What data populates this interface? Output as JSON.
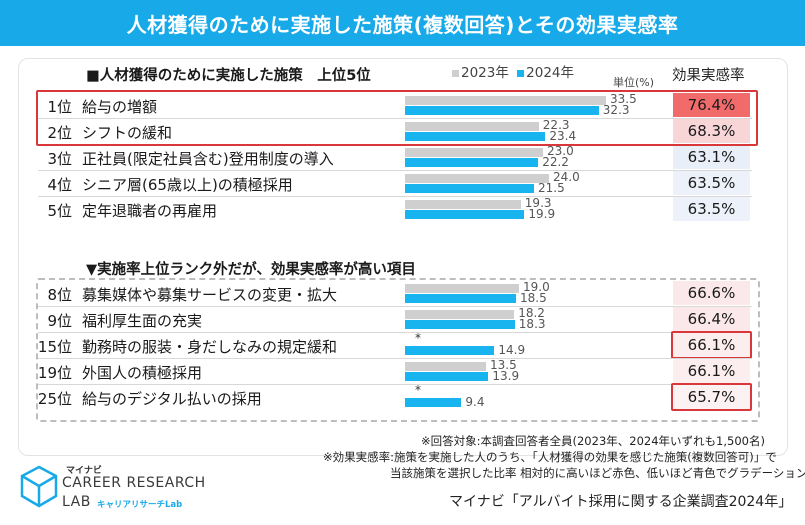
{
  "title": "人材獲得のために実施した施策(複数回答)とその効果実感率",
  "chart_data": {
    "type": "bar",
    "section1_title": "■人材獲得のために実施した施策　上位5位",
    "section2_title": "▼実施率上位ランク外だが、効果実感率が高い項目",
    "legend": [
      {
        "name": "2023年",
        "marker": "■",
        "color": "#cfcfcf"
      },
      {
        "name": "2024年",
        "marker": "■",
        "color": "#18b4f0"
      }
    ],
    "unit": "単位(%)",
    "effect_header": "効果実感率",
    "section1": [
      {
        "rank": "1位",
        "label": "給与の増額",
        "v2023": 33.5,
        "v2023_text": "33.5",
        "v2024": 32.3,
        "v2024_text": "32.3",
        "effect": "76.4%",
        "effect_color": "#f26b6b",
        "highlight": true
      },
      {
        "rank": "2位",
        "label": "シフトの緩和",
        "v2023": 22.3,
        "v2023_text": "22.3",
        "v2024": 23.4,
        "v2024_text": "23.4",
        "effect": "68.3%",
        "effect_color": "#f8d6d8",
        "highlight": true
      },
      {
        "rank": "3位",
        "label": "正社員(限定社員含む)登用制度の導入",
        "v2023": 23.0,
        "v2023_text": "23.0",
        "v2024": 22.2,
        "v2024_text": "22.2",
        "effect": "63.1%",
        "effect_color": "#e9eff9",
        "highlight": false
      },
      {
        "rank": "4位",
        "label": "シニア層(65歳以上)の積極採用",
        "v2023": 24.0,
        "v2023_text": "24.0",
        "v2024": 21.5,
        "v2024_text": "21.5",
        "effect": "63.5%",
        "effect_color": "#edf1f9",
        "highlight": false
      },
      {
        "rank": "5位",
        "label": "定年退職者の再雇用",
        "v2023": 19.3,
        "v2023_text": "19.3",
        "v2024": 19.9,
        "v2024_text": "19.9",
        "effect": "63.5%",
        "effect_color": "#edf1f9",
        "highlight": false
      }
    ],
    "section2": [
      {
        "rank": "8位",
        "label": "募集媒体や募集サービスの変更・拡大",
        "v2023": 19.0,
        "v2023_text": "19.0",
        "v2024": 18.5,
        "v2024_text": "18.5",
        "effect": "66.6%",
        "effect_color": "#fbe8ea",
        "highlight": false
      },
      {
        "rank": "9位",
        "label": "福利厚生面の充実",
        "v2023": 18.2,
        "v2023_text": "18.2",
        "v2024": 18.3,
        "v2024_text": "18.3",
        "effect": "66.4%",
        "effect_color": "#fbe8ea",
        "highlight": false
      },
      {
        "rank": "15位",
        "label": "勤務時の服装・身だしなみの規定緩和",
        "v2023": null,
        "v2023_text": "*",
        "v2024": 14.9,
        "v2024_text": "14.9",
        "effect": "66.1%",
        "effect_color": "#fcedef",
        "highlight": true
      },
      {
        "rank": "19位",
        "label": "外国人の積極採用",
        "v2023": 13.5,
        "v2023_text": "13.5",
        "v2024": 13.9,
        "v2024_text": "13.9",
        "effect": "66.1%",
        "effect_color": "#fcedef",
        "highlight": false
      },
      {
        "rank": "25位",
        "label": "給与のデジタル払いの採用",
        "v2023": null,
        "v2023_text": "*",
        "v2024": 9.4,
        "v2024_text": "9.4",
        "effect": "65.7%",
        "effect_color": "#fdf2f3",
        "highlight": true
      }
    ],
    "x_range": [
      0,
      40
    ]
  },
  "notes": {
    "note1": "※回答対象:本調査回答者全員(2023年、2024年いずれも1,500名)",
    "note2": "※効果実感率:施策を実施した人のうち、「人材獲得の効果を感じた施策(複数回答可)」で",
    "note3": "当該施策を選択した比率  相対的に高いほど赤色、低いほど青色でグラデーション"
  },
  "source": "マイナビ「アルバイト採用に関する企業調査2024年」",
  "logo": {
    "brand": "マイナビ",
    "line1": "CAREER RESEARCH",
    "line2": "LAB",
    "sub": "キャリアリサーチLab"
  }
}
